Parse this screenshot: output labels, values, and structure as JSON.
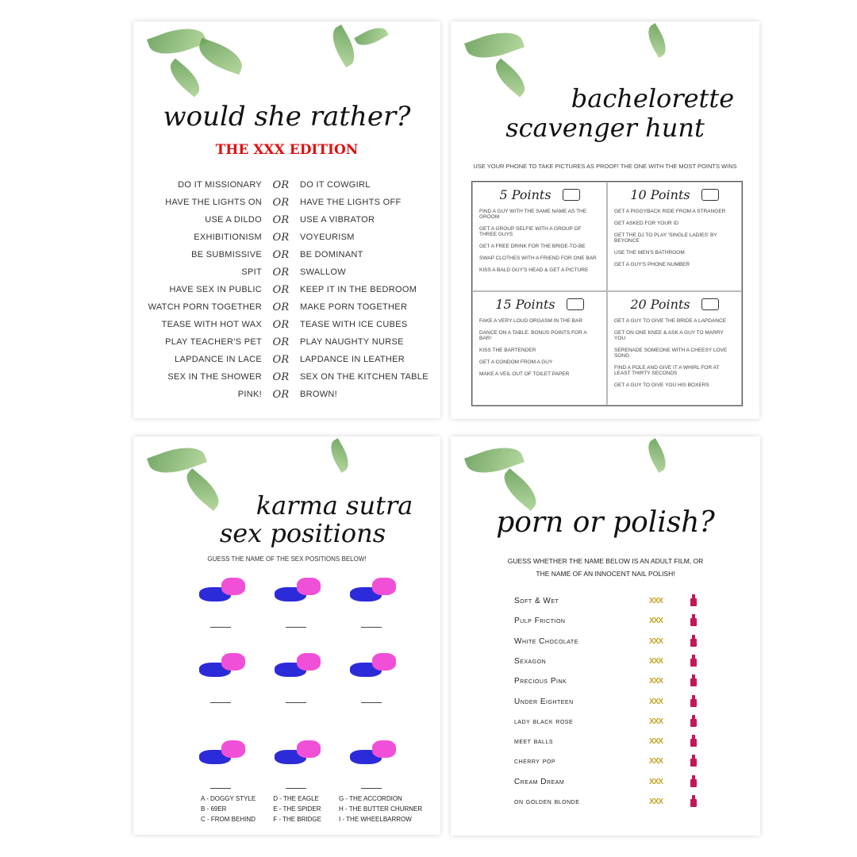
{
  "card1": {
    "title": "would she rather?",
    "subtitle": "THE XXX EDITION",
    "subtitle_color": "#e01010",
    "or": "or",
    "pairs": [
      [
        "DO IT MISSIONARY",
        "DO IT COWGIRL"
      ],
      [
        "HAVE THE LIGHTS ON",
        "HAVE THE LIGHTS OFF"
      ],
      [
        "USE A DILDO",
        "USE A VIBRATOR"
      ],
      [
        "EXHIBITIONISM",
        "VOYEURISM"
      ],
      [
        "BE SUBMISSIVE",
        "BE DOMINANT"
      ],
      [
        "SPIT",
        "SWALLOW"
      ],
      [
        "HAVE SEX IN PUBLIC",
        "KEEP IT IN THE BEDROOM"
      ],
      [
        "WATCH PORN TOGETHER",
        "MAKE PORN TOGETHER"
      ],
      [
        "TEASE WITH HOT WAX",
        "TEASE WITH ICE CUBES"
      ],
      [
        "PLAY TEACHER'S PET",
        "PLAY NAUGHTY NURSE"
      ],
      [
        "LAPDANCE IN LACE",
        "LAPDANCE IN LEATHER"
      ],
      [
        "SEX IN THE SHOWER",
        "SEX ON THE KITCHEN TABLE"
      ],
      [
        "PINK!",
        "BROWN!"
      ]
    ]
  },
  "card2": {
    "title1": "bachelorette",
    "title2": "scavenger hunt",
    "instructions": "USE YOUR PHONE TO TAKE PICTURES AS PROOF! THE ONE WITH THE MOST POINTS WINS",
    "sections": [
      {
        "label": "5 Points",
        "items": [
          "Find a guy with the same name as the groom",
          "Get a group selfie with a group of three guys",
          "Get a free drink for the bride-to-be",
          "Swap clothes with a friend for one bar",
          "Kiss a bald guy's head & get a picture"
        ]
      },
      {
        "label": "10 Points",
        "items": [
          "Get a piggyback ride from a stranger",
          "Get asked for your ID",
          "Get the DJ to play 'Single Ladies' by Beyonce",
          "Use the men's bathroom",
          "Get a guy's phone number"
        ]
      },
      {
        "label": "15 Points",
        "items": [
          "Fake a very loud orgasm in the bar",
          "Dance on a table. Bonus points for a bar!",
          "Kiss the bartender",
          "Get a condom from a guy",
          "Make a veil out of toilet paper"
        ]
      },
      {
        "label": "20 Points",
        "items": [
          "Get a guy to give the bride a lapdance",
          "Get on one knee & ask a guy to marry you",
          "Serenade someone with a cheesy love song",
          "Find a pole and give it a whirl for at least thirty seconds",
          "Get a guy to give you his boxers"
        ]
      }
    ]
  },
  "card3": {
    "title1": "karma sutra",
    "title2": "sex positions",
    "instructions": "GUESS THE NAME OF THE SEX POSITIONS BELOW!",
    "figure_colors": [
      "#2b2bd9",
      "#f050d8"
    ],
    "answers": [
      [
        "A - DOGGY STYLE",
        "B - 69ER",
        "C - FROM BEHIND"
      ],
      [
        "D - THE EAGLE",
        "E - THE SPIDER",
        "F - THE BRIDGE"
      ],
      [
        "G - THE ACCORDION",
        "H - THE BUTTER CHURNER",
        "I - THE WHEELBARROW"
      ]
    ]
  },
  "card4": {
    "title": "porn or polish?",
    "instructions1": "GUESS WHETHER THE NAME BELOW IS AN ADULT FILM, OR",
    "instructions2": "THE NAME OF AN INNOCENT NAIL POLISH!",
    "xxx": "XXX",
    "items": [
      "Soft & Wet",
      "Pulp Friction",
      "White Chocolate",
      "Sexagon",
      "Precious Pink",
      "Under Eighteen",
      "lady black rose",
      "meet balls",
      "cherry pop",
      "Cream Dream",
      "on golden blonde"
    ]
  }
}
